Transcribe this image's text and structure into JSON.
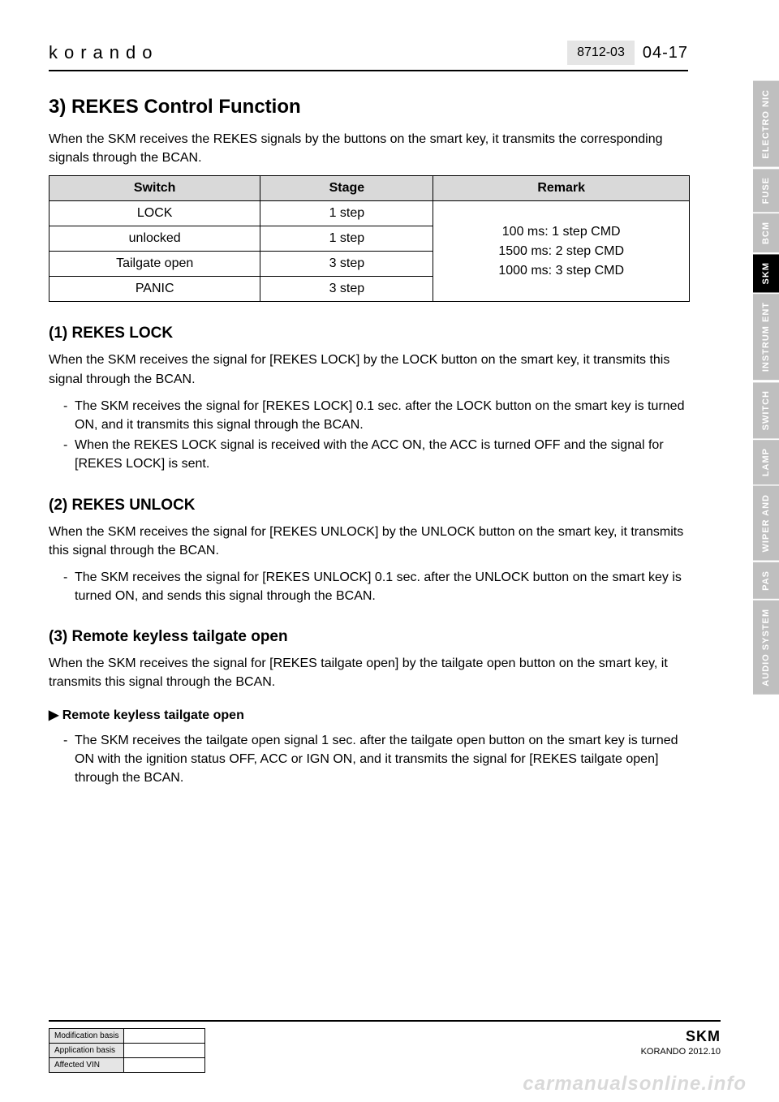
{
  "header": {
    "logo": "korando",
    "doc_code": "8712-03",
    "page_num": "04-17"
  },
  "tabs": [
    {
      "label": "ELECTRO\nNIC",
      "active": false
    },
    {
      "label": "FUSE",
      "active": false
    },
    {
      "label": "BCM",
      "active": false
    },
    {
      "label": "SKM",
      "active": true
    },
    {
      "label": "INSTRUM\nENT",
      "active": false
    },
    {
      "label": "SWITCH",
      "active": false
    },
    {
      "label": "LAMP",
      "active": false
    },
    {
      "label": "WIPER\nAND",
      "active": false
    },
    {
      "label": "PAS",
      "active": false
    },
    {
      "label": "AUDIO\nSYSTEM",
      "active": false
    }
  ],
  "section": {
    "title": "3) REKES Control Function",
    "intro": "When the SKM receives the REKES signals by the buttons on the smart key, it transmits the corresponding signals through the BCAN."
  },
  "table": {
    "columns": [
      "Switch",
      "Stage",
      "Remark"
    ],
    "rows": [
      {
        "switch": "LOCK",
        "stage": "1 step"
      },
      {
        "switch": "unlocked",
        "stage": "1 step"
      },
      {
        "switch": "Tailgate open",
        "stage": "3 step"
      },
      {
        "switch": "PANIC",
        "stage": "3 step"
      }
    ],
    "remark_lines": [
      "100 ms: 1 step CMD",
      "1500 ms: 2 step CMD",
      "1000 ms: 3 step CMD"
    ],
    "col_widths": [
      "33%",
      "27%",
      "40%"
    ],
    "header_bg": "#d9d9d9",
    "border_color": "#000000"
  },
  "sub1": {
    "title": "(1) REKES LOCK",
    "intro": "When the SKM receives the signal for [REKES LOCK] by the LOCK button on the smart key, it transmits this signal through the BCAN.",
    "items": [
      "The SKM receives the signal for [REKES LOCK] 0.1 sec. after the LOCK button on the smart key is turned ON, and it transmits this signal through the BCAN.",
      "When the REKES LOCK signal is received with the ACC ON, the ACC is turned OFF and the signal for [REKES LOCK] is sent."
    ]
  },
  "sub2": {
    "title": "(2) REKES UNLOCK",
    "intro": "When the SKM receives the signal for [REKES UNLOCK] by the UNLOCK button on the smart key, it transmits this signal through the BCAN.",
    "items": [
      "The SKM receives the signal for [REKES UNLOCK] 0.1 sec. after the UNLOCK button on the smart key is turned ON, and sends this signal through the BCAN."
    ]
  },
  "sub3": {
    "title": "(3) Remote keyless tailgate open",
    "intro": "When the SKM receives the signal for [REKES tailgate open] by the tailgate open button on the smart key, it transmits this signal through the BCAN.",
    "sub_title": "▶ Remote keyless tailgate open",
    "items": [
      "The SKM receives the tailgate open signal 1 sec. after the tailgate open button on the smart key is turned ON with the ignition status OFF, ACC or IGN ON, and it transmits the signal for [REKES tailgate open] through the BCAN."
    ]
  },
  "footer": {
    "mod_rows": [
      "Modification basis",
      "Application basis",
      "Affected VIN"
    ],
    "skm": "SKM",
    "model": "KORANDO 2012.10"
  },
  "watermark": "carmanualsonline.info"
}
